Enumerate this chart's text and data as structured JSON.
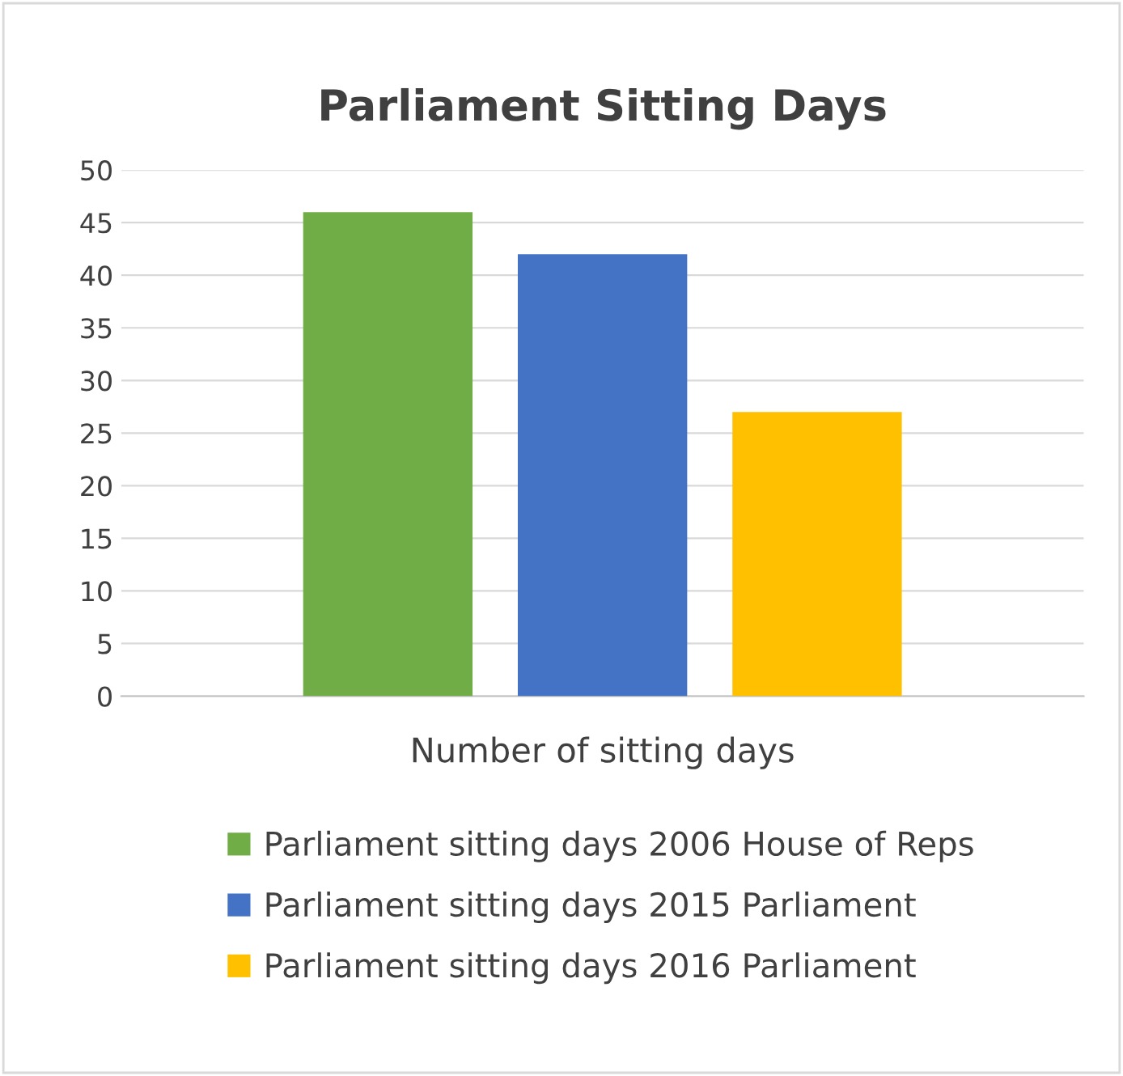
{
  "chart_data": {
    "type": "bar",
    "title": "Parliament Sitting Days",
    "categories": [
      "Number of sitting days"
    ],
    "series": [
      {
        "name": "Parliament sitting days 2006 House of Reps",
        "color": "#70ad47",
        "values": [
          46
        ]
      },
      {
        "name": "Parliament sitting days 2015 Parliament",
        "color": "#4472c4",
        "values": [
          42
        ]
      },
      {
        "name": "Parliament sitting days 2016 Parliament",
        "color": "#ffc000",
        "values": [
          27
        ]
      }
    ],
    "ylim": [
      0,
      50
    ],
    "yticks": [
      0,
      5,
      10,
      15,
      20,
      25,
      30,
      35,
      40,
      45,
      50
    ],
    "grid": "y",
    "legend": "bottom"
  }
}
